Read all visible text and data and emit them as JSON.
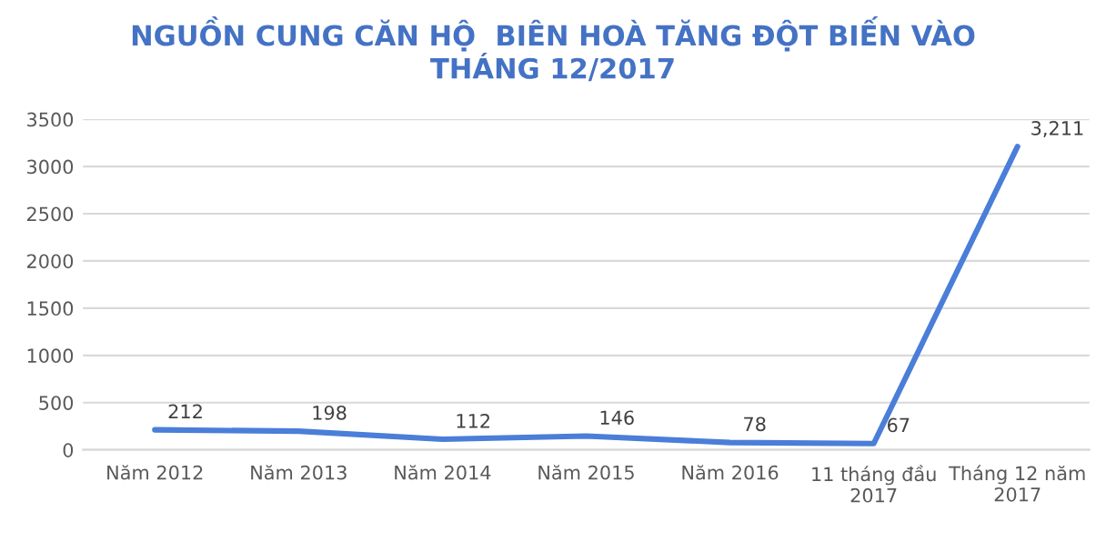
{
  "chart_data": {
    "type": "line",
    "title": "NGUỒN CUNG CĂN HỘ  BIÊN HOÀ TĂNG ĐỘT BIẾN VÀO\nTHÁNG 12/2017",
    "categories": [
      "Năm 2012",
      "Năm 2013",
      "Năm 2014",
      "Năm 2015",
      "Năm 2016",
      "11 tháng đầu\n2017",
      "Tháng 12 năm\n2017"
    ],
    "series": [
      {
        "color": "#4a7ed8",
        "values": [
          212,
          198,
          112,
          146,
          78,
          67,
          3211
        ],
        "value_labels": [
          "212",
          "198",
          "112",
          "146",
          "78",
          "67",
          "3,211"
        ]
      }
    ],
    "ylim": [
      0,
      3500
    ],
    "yticks": [
      0,
      500,
      1000,
      1500,
      2000,
      2500,
      3000,
      3500
    ],
    "grid": "y",
    "marker": "none",
    "line_style": "solid"
  }
}
